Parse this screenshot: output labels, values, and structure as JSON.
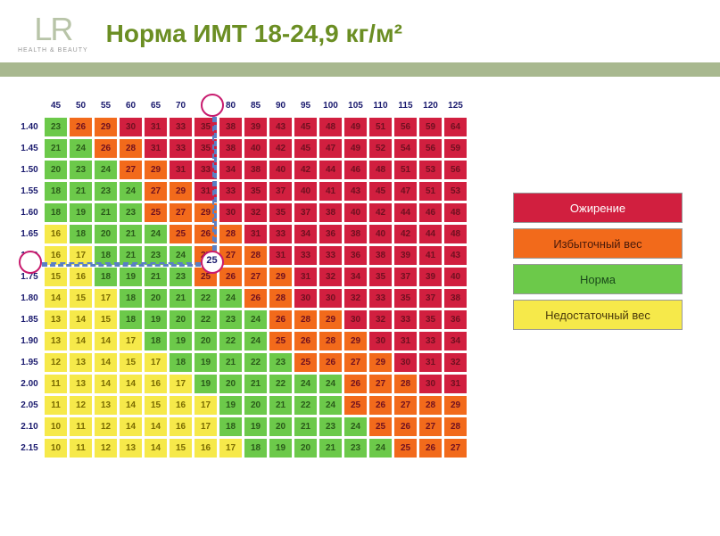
{
  "logo": {
    "text": "LR",
    "subtitle": "HEALTH & BEAUTY"
  },
  "title": "Норма ИМТ 18-24,9 кг/м²",
  "chart": {
    "weights": [
      45,
      50,
      55,
      60,
      65,
      70,
      75,
      80,
      85,
      90,
      95,
      100,
      105,
      110,
      115,
      120,
      125
    ],
    "heights": [
      "1.40",
      "1.45",
      "1.50",
      "1.55",
      "1.60",
      "1.65",
      "1.70",
      "1.75",
      "1.80",
      "1.85",
      "1.90",
      "1.95",
      "2.00",
      "2.05",
      "2.10",
      "2.15"
    ],
    "cells": [
      [
        23,
        26,
        29,
        30,
        31,
        33,
        35,
        38,
        39,
        43,
        45,
        48,
        49,
        51,
        56,
        59,
        64
      ],
      [
        21,
        24,
        26,
        28,
        31,
        33,
        35,
        38,
        40,
        42,
        45,
        47,
        49,
        52,
        54,
        56,
        59
      ],
      [
        20,
        23,
        24,
        27,
        29,
        31,
        33,
        34,
        38,
        40,
        42,
        44,
        46,
        48,
        51,
        53,
        56
      ],
      [
        18,
        21,
        23,
        24,
        27,
        29,
        31,
        33,
        35,
        37,
        40,
        41,
        43,
        45,
        47,
        51,
        53
      ],
      [
        18,
        19,
        21,
        23,
        25,
        27,
        29,
        30,
        32,
        35,
        37,
        38,
        40,
        42,
        44,
        46,
        48
      ],
      [
        16,
        18,
        20,
        21,
        24,
        25,
        26,
        28,
        31,
        33,
        34,
        36,
        38,
        40,
        42,
        44,
        48
      ],
      [
        16,
        17,
        18,
        21,
        23,
        24,
        25,
        27,
        28,
        31,
        33,
        33,
        36,
        38,
        39,
        41,
        43
      ],
      [
        15,
        16,
        18,
        19,
        21,
        23,
        25,
        26,
        27,
        29,
        31,
        32,
        34,
        35,
        37,
        39,
        40
      ],
      [
        14,
        15,
        17,
        18,
        20,
        21,
        22,
        24,
        26,
        28,
        30,
        30,
        32,
        33,
        35,
        37,
        38
      ],
      [
        13,
        14,
        15,
        18,
        19,
        20,
        22,
        23,
        24,
        26,
        28,
        29,
        30,
        32,
        33,
        35,
        36
      ],
      [
        13,
        14,
        14,
        17,
        18,
        19,
        20,
        22,
        24,
        25,
        26,
        28,
        29,
        30,
        31,
        33,
        34
      ],
      [
        12,
        13,
        14,
        15,
        17,
        18,
        19,
        21,
        22,
        23,
        25,
        26,
        27,
        29,
        30,
        31,
        32
      ],
      [
        11,
        13,
        14,
        14,
        16,
        17,
        19,
        20,
        21,
        22,
        24,
        24,
        26,
        27,
        28,
        30,
        31
      ],
      [
        11,
        12,
        13,
        14,
        15,
        16,
        17,
        19,
        20,
        21,
        22,
        24,
        25,
        26,
        27,
        28,
        29
      ],
      [
        10,
        11,
        12,
        14,
        14,
        16,
        17,
        18,
        19,
        20,
        21,
        23,
        24,
        25,
        26,
        27,
        28
      ],
      [
        10,
        11,
        12,
        13,
        14,
        15,
        16,
        17,
        18,
        19,
        20,
        21,
        23,
        24,
        25,
        26,
        27
      ]
    ],
    "colors": {
      "underweight": "#f6e94a",
      "normal": "#6cc94a",
      "overweight": "#f26a1b",
      "obese": "#d11f3f",
      "text_ob": "#6f1020",
      "text_ov": "#6f1020",
      "text_no": "#2a5a1a",
      "text_un": "#7a6a00"
    },
    "highlight": {
      "weight": 75,
      "height": "1.70",
      "bmi": 25
    }
  },
  "legend": {
    "items": [
      {
        "label": "Ожирение",
        "bg": "#d11f3f",
        "fg": "#ffffff"
      },
      {
        "label": "Избыточный вес",
        "bg": "#f26a1b",
        "fg": "#4a1a0a"
      },
      {
        "label": "Норма",
        "bg": "#6cc94a",
        "fg": "#1a4a1a"
      },
      {
        "label": "Недостаточный вес",
        "bg": "#f6e94a",
        "fg": "#4a3a0a"
      }
    ]
  }
}
